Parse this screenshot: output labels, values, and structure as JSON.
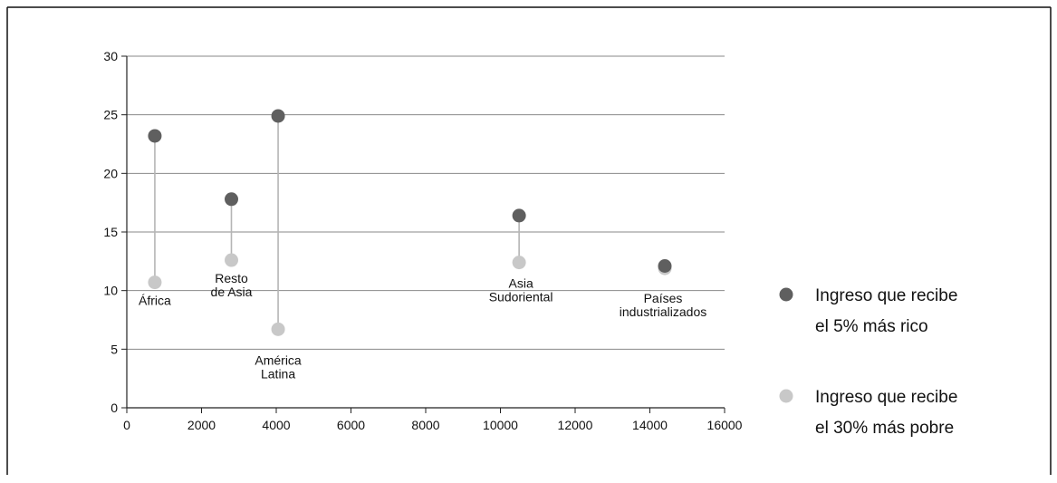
{
  "chart_data": {
    "type": "scatter",
    "title": "",
    "xlabel": "",
    "ylabel": "",
    "xlim": [
      0,
      16000
    ],
    "ylim": [
      0,
      30
    ],
    "xticks": [
      0,
      2000,
      4000,
      6000,
      8000,
      10000,
      12000,
      14000,
      16000
    ],
    "yticks": [
      0,
      5,
      10,
      15,
      20,
      25,
      30
    ],
    "grid": "horizontal",
    "legend_position": "right",
    "series": [
      {
        "name": "Ingreso que recibe el 5% más rico",
        "legend_lines": [
          "Ingreso que recibe",
          "el 5% más rico"
        ],
        "color": "#5f5f5f",
        "points": [
          {
            "x": 750,
            "y": 23.2
          },
          {
            "x": 2800,
            "y": 17.8
          },
          {
            "x": 4050,
            "y": 24.9
          },
          {
            "x": 10500,
            "y": 16.4
          },
          {
            "x": 14400,
            "y": 12.1
          }
        ]
      },
      {
        "name": "Ingreso que recibe el 30% más pobre",
        "legend_lines": [
          "Ingreso que recibe",
          "el 30% más pobre"
        ],
        "color": "#c8c8c8",
        "points": [
          {
            "x": 750,
            "y": 10.7
          },
          {
            "x": 2800,
            "y": 12.6
          },
          {
            "x": 4050,
            "y": 6.7
          },
          {
            "x": 10500,
            "y": 12.4
          },
          {
            "x": 14400,
            "y": 11.9
          }
        ]
      }
    ],
    "annotations": [
      {
        "lines": [
          "África"
        ],
        "x": 750,
        "y": 10.7
      },
      {
        "lines": [
          "Resto",
          "de Asia"
        ],
        "x": 2800,
        "y": 12.6
      },
      {
        "lines": [
          "América",
          "Latina"
        ],
        "x": 4050,
        "y": 6.7
      },
      {
        "lines": [
          "Asia",
          "Sudoriental"
        ],
        "x": 10500,
        "y": 12.4
      },
      {
        "lines": [
          "Países",
          "industrializados"
        ],
        "x": 14400,
        "y": 11.9
      }
    ]
  }
}
